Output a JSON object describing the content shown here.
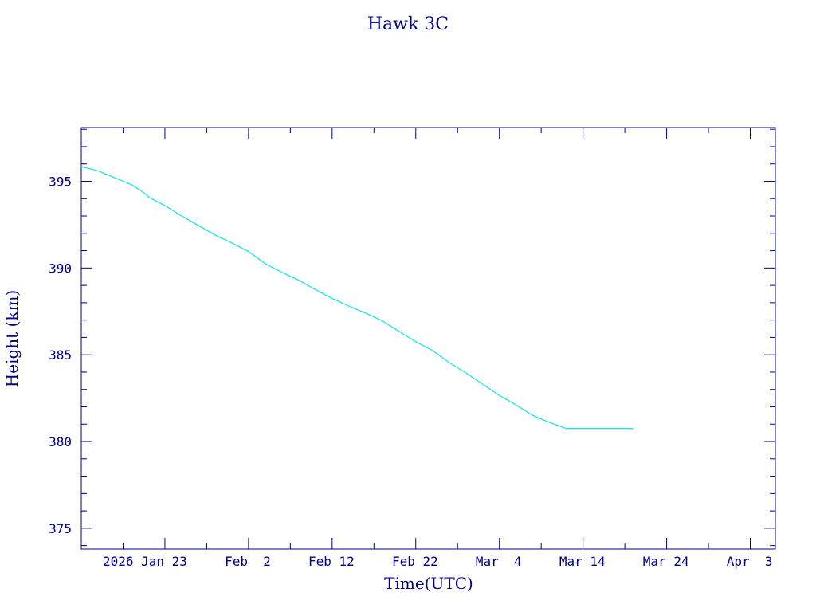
{
  "chart_data": {
    "type": "line",
    "title": "Hawk 3C",
    "xlabel": "Time(UTC)",
    "ylabel": "Height (km)",
    "x_tick_labels": [
      "2026 Jan 23",
      "Feb  2",
      "Feb 12",
      "Feb 22",
      "Mar  4",
      "Mar 14",
      "Mar 24",
      "Apr  3"
    ],
    "x_tick_dates": [
      "2026-01-23",
      "2026-02-02",
      "2026-02-12",
      "2026-02-22",
      "2026-03-04",
      "2026-03-14",
      "2026-03-24",
      "2026-04-03"
    ],
    "y_tick_labels": [
      "375",
      "380",
      "385",
      "390",
      "395"
    ],
    "y_ticks": [
      375,
      380,
      385,
      390,
      395
    ],
    "xlim": [
      "2026-01-13",
      "2026-04-06"
    ],
    "ylim": [
      373.8,
      398.1
    ],
    "grid": false,
    "colors": {
      "axis": "#00008b",
      "line": "#1ee6e6"
    },
    "series": [
      {
        "x": [
          "2026-01-13",
          "2026-01-15",
          "2026-01-17",
          "2026-01-19",
          "2026-01-20",
          "2026-01-21",
          "2026-01-21",
          "2026-01-23",
          "2026-01-25",
          "2026-01-27",
          "2026-01-29",
          "2026-01-31",
          "2026-02-02",
          "2026-02-04",
          "2026-02-06",
          "2026-02-08",
          "2026-02-10",
          "2026-02-12",
          "2026-02-14",
          "2026-02-16",
          "2026-02-18",
          "2026-02-20",
          "2026-02-22",
          "2026-02-24",
          "2026-02-26",
          "2026-02-28",
          "2026-03-02",
          "2026-03-04",
          "2026-03-06",
          "2026-03-08",
          "2026-03-10",
          "2026-03-12",
          "2026-03-14",
          "2026-03-16",
          "2026-03-18",
          "2026-03-20"
        ],
        "y": [
          395.85,
          395.6,
          395.2,
          394.8,
          394.5,
          394.15,
          394.1,
          393.6,
          393.0,
          392.45,
          391.9,
          391.45,
          390.95,
          390.25,
          389.75,
          389.3,
          388.75,
          388.25,
          387.8,
          387.4,
          386.95,
          386.35,
          385.75,
          385.25,
          384.55,
          383.95,
          383.3,
          382.65,
          382.1,
          381.5,
          381.1,
          380.75,
          380.75,
          380.75,
          380.75,
          380.75
        ]
      }
    ]
  }
}
